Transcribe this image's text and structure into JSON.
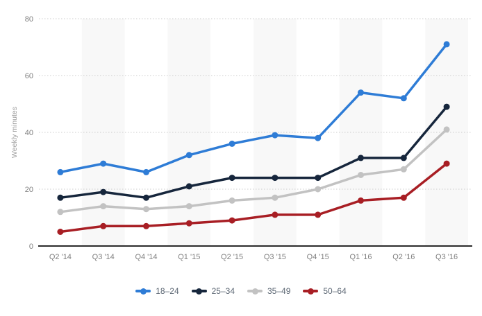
{
  "chart_data": {
    "type": "line",
    "title": "",
    "xlabel": "",
    "ylabel": "Weekly minutes",
    "categories": [
      "Q2 '14",
      "Q3 '14",
      "Q4 '14",
      "Q1 '15",
      "Q2 '15",
      "Q3 '15",
      "Q4 '15",
      "Q1 '16",
      "Q2 '16",
      "Q3 '16"
    ],
    "series": [
      {
        "name": "18–24",
        "color": "#2e7cd6",
        "values": [
          26,
          29,
          26,
          32,
          36,
          39,
          38,
          54,
          52,
          71
        ]
      },
      {
        "name": "25–34",
        "color": "#16263c",
        "values": [
          17,
          19,
          17,
          21,
          24,
          24,
          24,
          31,
          31,
          49
        ]
      },
      {
        "name": "35–49",
        "color": "#c2c2c2",
        "values": [
          12,
          14,
          13,
          14,
          16,
          17,
          20,
          25,
          27,
          41
        ]
      },
      {
        "name": "50–64",
        "color": "#a81e24",
        "values": [
          5,
          7,
          7,
          8,
          9,
          11,
          11,
          16,
          17,
          29
        ]
      }
    ],
    "ylim": [
      0,
      80
    ],
    "yticks": [
      0,
      20,
      40,
      60,
      80
    ],
    "grid": "horizontal-dotted",
    "legend_position": "bottom",
    "colors": {
      "plot_band": "#f8f8f8",
      "gridline": "#cccccc",
      "axis_line": "#2b2b2b",
      "tick_text": "#7f7f7f",
      "axis_title_text": "#9b9b9b",
      "legend_text": "#5b6673",
      "background": "#ffffff"
    }
  }
}
